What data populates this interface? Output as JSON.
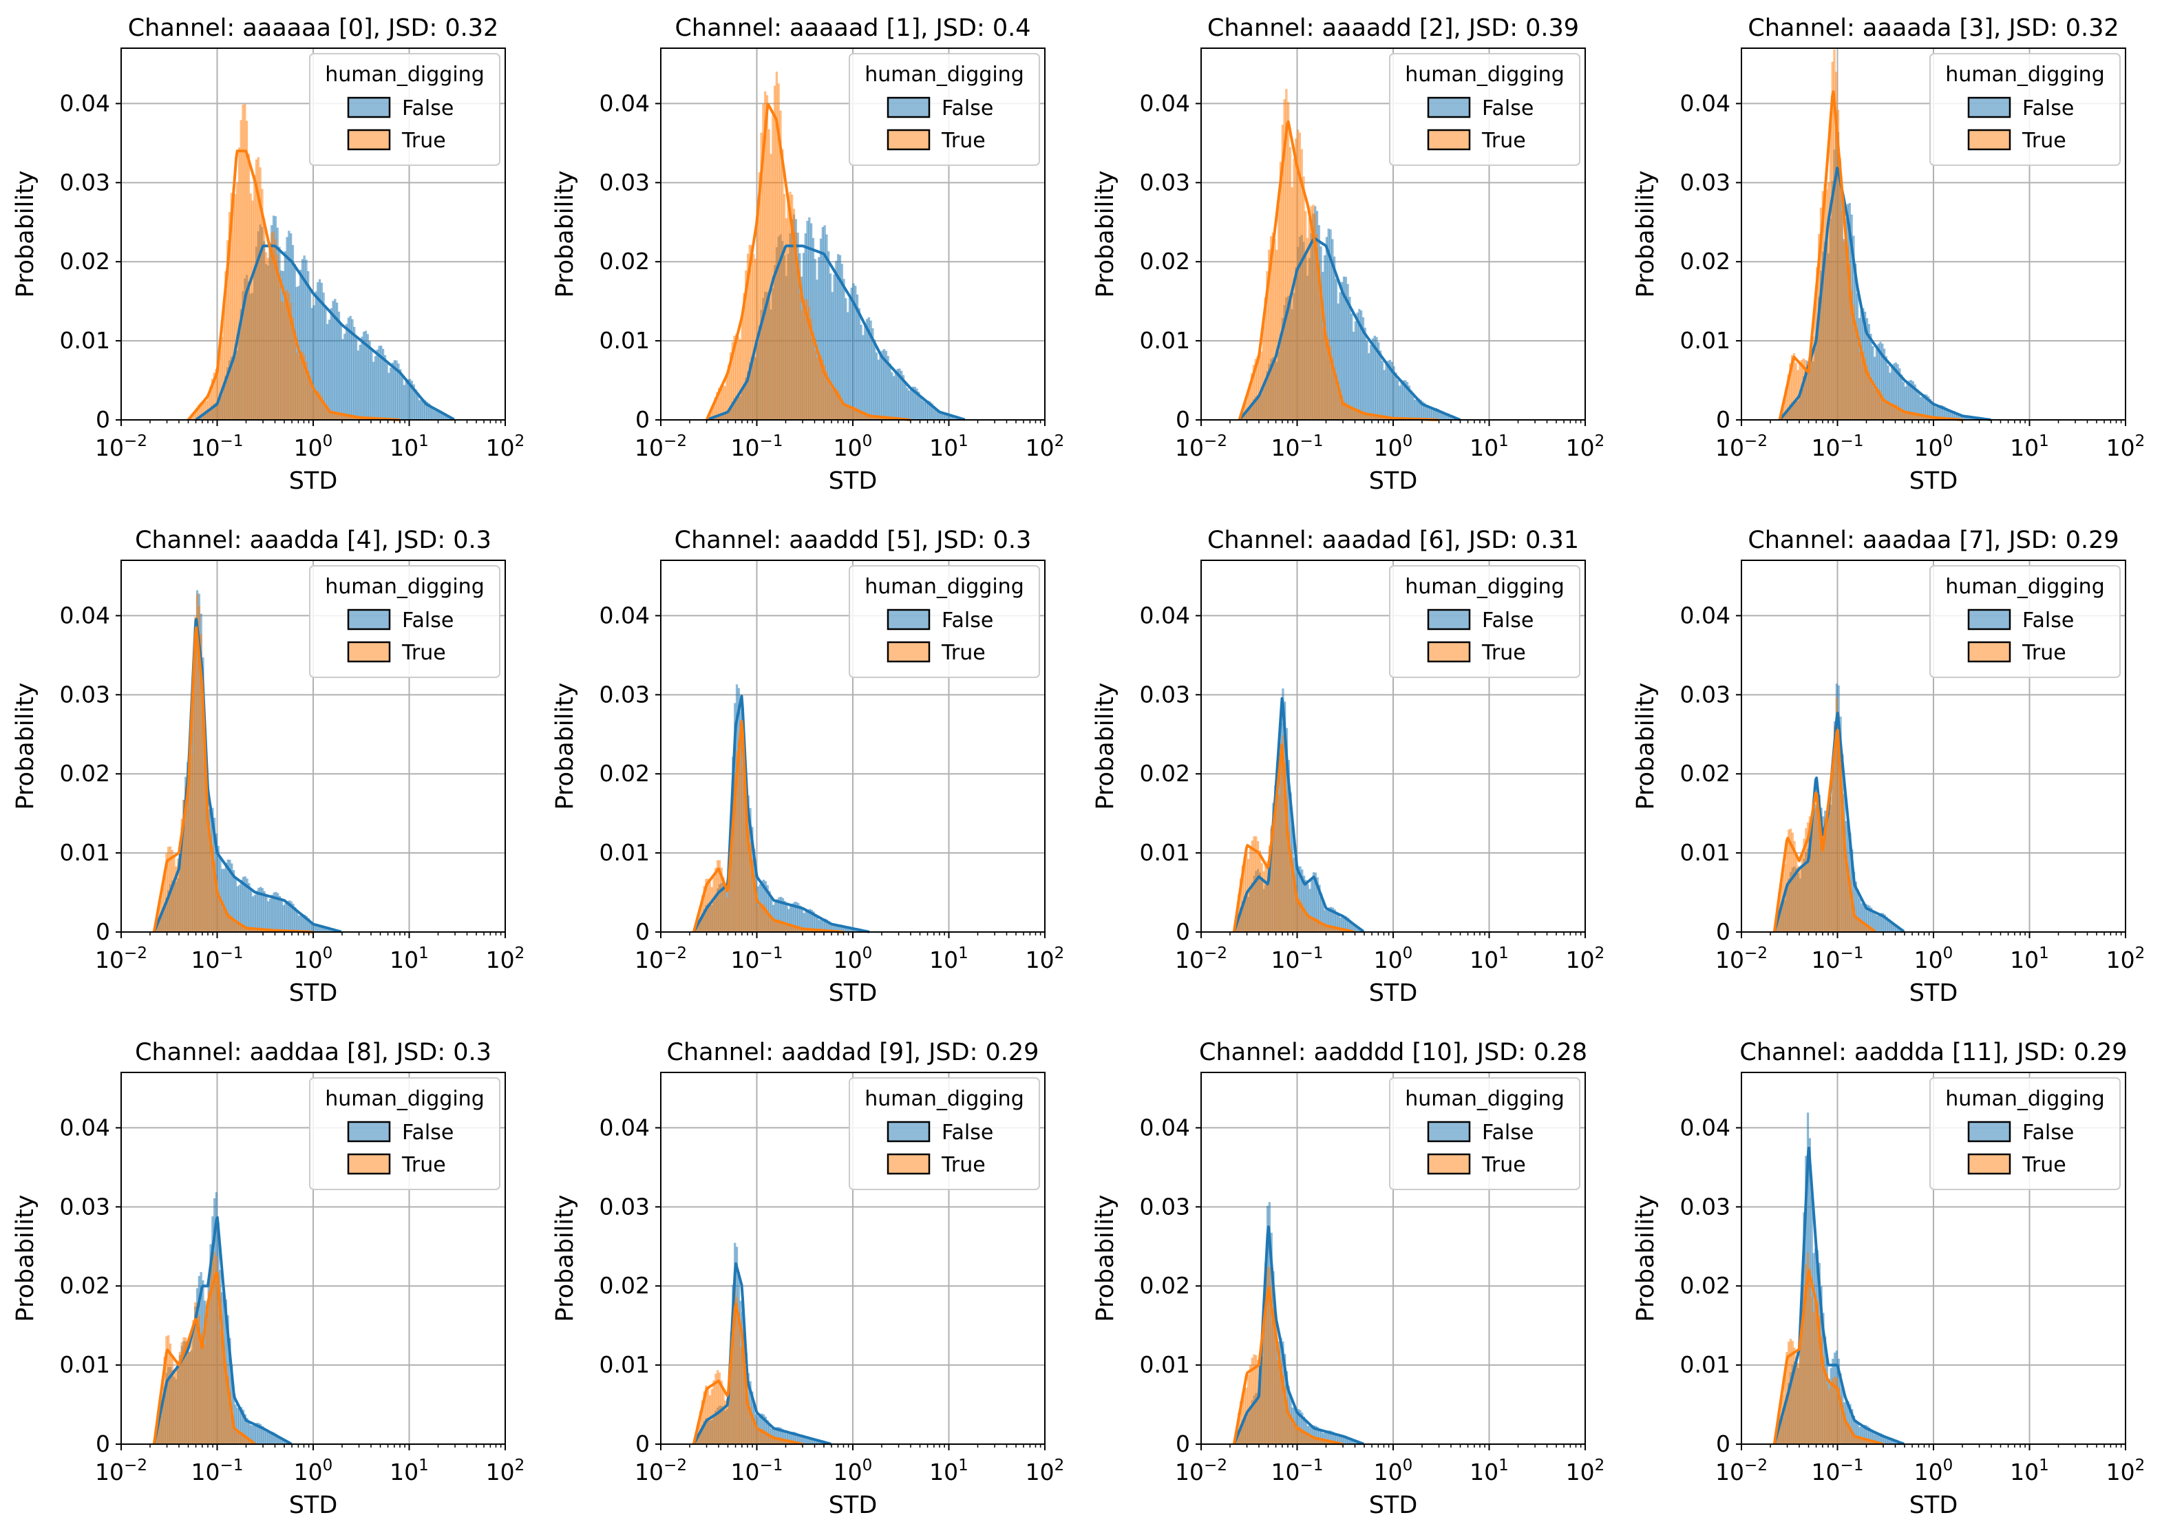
{
  "figure": {
    "legend_title": "human_digging",
    "legend_false": "False",
    "legend_true": "True",
    "colors": {
      "false_fill": "#1f77b4",
      "true_fill": "#ff7f0e",
      "false_line": "#1f77b4",
      "true_line": "#ff7f0e"
    }
  },
  "chart_data": [
    {
      "type": "area",
      "title": "Channel: aaaaaa [0], JSD: 0.32",
      "xlabel": "STD",
      "ylabel": "Probability",
      "xscale": "log",
      "xlim": [
        0.01,
        100
      ],
      "ylim": [
        0,
        0.047
      ],
      "yticks": [
        0,
        0.01,
        0.02,
        0.03,
        0.04
      ],
      "ytick_labels": [
        "0",
        "0.01",
        "0.02",
        "0.03",
        "0.04"
      ],
      "grid": true,
      "legend": "top-right",
      "series": [
        {
          "name": "False",
          "x": [
            0.06,
            0.1,
            0.15,
            0.2,
            0.3,
            0.4,
            0.6,
            1,
            2,
            4,
            8,
            15,
            30
          ],
          "values": [
            0,
            0.002,
            0.008,
            0.016,
            0.022,
            0.022,
            0.02,
            0.016,
            0.012,
            0.009,
            0.006,
            0.002,
            0
          ]
        },
        {
          "name": "True",
          "x": [
            0.05,
            0.08,
            0.1,
            0.13,
            0.16,
            0.2,
            0.25,
            0.35,
            0.5,
            0.7,
            1,
            1.5,
            3,
            8
          ],
          "values": [
            0,
            0.003,
            0.006,
            0.02,
            0.034,
            0.034,
            0.03,
            0.022,
            0.016,
            0.009,
            0.004,
            0.001,
            0.0003,
            0
          ]
        }
      ]
    },
    {
      "type": "area",
      "title": "Channel: aaaaad [1], JSD: 0.4",
      "xlabel": "STD",
      "ylabel": "Probability",
      "xscale": "log",
      "xlim": [
        0.01,
        100
      ],
      "ylim": [
        0,
        0.047
      ],
      "yticks": [
        0,
        0.01,
        0.02,
        0.03,
        0.04
      ],
      "ytick_labels": [
        "0",
        "0.01",
        "0.02",
        "0.03",
        "0.04"
      ],
      "grid": true,
      "legend": "top-right",
      "series": [
        {
          "name": "False",
          "x": [
            0.03,
            0.05,
            0.08,
            0.1,
            0.15,
            0.2,
            0.3,
            0.5,
            1,
            2,
            4,
            8,
            15
          ],
          "values": [
            0,
            0.001,
            0.005,
            0.01,
            0.018,
            0.022,
            0.022,
            0.021,
            0.015,
            0.008,
            0.004,
            0.001,
            0
          ]
        },
        {
          "name": "True",
          "x": [
            0.03,
            0.05,
            0.07,
            0.1,
            0.13,
            0.16,
            0.2,
            0.3,
            0.5,
            0.8,
            1.5,
            4
          ],
          "values": [
            0,
            0.006,
            0.013,
            0.025,
            0.04,
            0.038,
            0.03,
            0.015,
            0.006,
            0.002,
            0.0005,
            0
          ]
        }
      ]
    },
    {
      "type": "area",
      "title": "Channel: aaaadd [2], JSD: 0.39",
      "xlabel": "STD",
      "ylabel": "Probability",
      "xscale": "log",
      "xlim": [
        0.01,
        100
      ],
      "ylim": [
        0,
        0.047
      ],
      "yticks": [
        0,
        0.01,
        0.02,
        0.03,
        0.04
      ],
      "ytick_labels": [
        "0",
        "0.01",
        "0.02",
        "0.03",
        "0.04"
      ],
      "grid": true,
      "legend": "top-right",
      "series": [
        {
          "name": "False",
          "x": [
            0.025,
            0.04,
            0.06,
            0.08,
            0.1,
            0.15,
            0.2,
            0.3,
            0.5,
            1,
            2,
            5
          ],
          "values": [
            0,
            0.003,
            0.008,
            0.014,
            0.019,
            0.023,
            0.022,
            0.016,
            0.011,
            0.006,
            0.002,
            0
          ]
        },
        {
          "name": "True",
          "x": [
            0.025,
            0.04,
            0.06,
            0.08,
            0.1,
            0.13,
            0.16,
            0.2,
            0.3,
            0.5,
            1,
            3
          ],
          "values": [
            0,
            0.008,
            0.025,
            0.038,
            0.032,
            0.027,
            0.021,
            0.01,
            0.002,
            0.0008,
            0.0002,
            0
          ]
        }
      ]
    },
    {
      "type": "area",
      "title": "Channel: aaaada [3], JSD: 0.32",
      "xlabel": "STD",
      "ylabel": "Probability",
      "xscale": "log",
      "xlim": [
        0.01,
        100
      ],
      "ylim": [
        0,
        0.047
      ],
      "yticks": [
        0,
        0.01,
        0.02,
        0.03,
        0.04
      ],
      "ytick_labels": [
        "0",
        "0.01",
        "0.02",
        "0.03",
        "0.04"
      ],
      "grid": true,
      "legend": "top-right",
      "series": [
        {
          "name": "False",
          "x": [
            0.025,
            0.04,
            0.06,
            0.08,
            0.1,
            0.13,
            0.16,
            0.2,
            0.3,
            0.5,
            1,
            2,
            4
          ],
          "values": [
            0,
            0.003,
            0.01,
            0.025,
            0.032,
            0.025,
            0.017,
            0.011,
            0.008,
            0.005,
            0.002,
            0.0005,
            0
          ]
        },
        {
          "name": "True",
          "x": [
            0.025,
            0.035,
            0.05,
            0.07,
            0.09,
            0.11,
            0.14,
            0.2,
            0.3,
            0.5,
            1,
            2
          ],
          "values": [
            0,
            0.008,
            0.006,
            0.025,
            0.042,
            0.03,
            0.014,
            0.006,
            0.0025,
            0.001,
            0.0003,
            0
          ]
        }
      ]
    },
    {
      "type": "area",
      "title": "Channel: aaadda [4], JSD: 0.3",
      "xlabel": "STD",
      "ylabel": "Probability",
      "xscale": "log",
      "xlim": [
        0.01,
        100
      ],
      "ylim": [
        0,
        0.047
      ],
      "yticks": [
        0,
        0.01,
        0.02,
        0.03,
        0.04
      ],
      "ytick_labels": [
        "0",
        "0.01",
        "0.02",
        "0.03",
        "0.04"
      ],
      "grid": true,
      "legend": "top-right",
      "series": [
        {
          "name": "False",
          "x": [
            0.022,
            0.03,
            0.04,
            0.05,
            0.06,
            0.07,
            0.08,
            0.1,
            0.15,
            0.25,
            0.5,
            1,
            2
          ],
          "values": [
            0,
            0.004,
            0.008,
            0.02,
            0.04,
            0.033,
            0.018,
            0.01,
            0.007,
            0.005,
            0.004,
            0.001,
            0
          ]
        },
        {
          "name": "True",
          "x": [
            0.022,
            0.03,
            0.04,
            0.05,
            0.06,
            0.07,
            0.08,
            0.1,
            0.13,
            0.2,
            0.4,
            1
          ],
          "values": [
            0,
            0.009,
            0.01,
            0.018,
            0.039,
            0.031,
            0.014,
            0.005,
            0.002,
            0.0005,
            0.0002,
            0
          ]
        }
      ]
    },
    {
      "type": "area",
      "title": "Channel: aaaddd [5], JSD: 0.3",
      "xlabel": "STD",
      "ylabel": "Probability",
      "xscale": "log",
      "xlim": [
        0.01,
        100
      ],
      "ylim": [
        0,
        0.047
      ],
      "yticks": [
        0,
        0.01,
        0.02,
        0.03,
        0.04
      ],
      "ytick_labels": [
        "0",
        "0.01",
        "0.02",
        "0.03",
        "0.04"
      ],
      "grid": true,
      "legend": "top-right",
      "series": [
        {
          "name": "False",
          "x": [
            0.022,
            0.03,
            0.04,
            0.05,
            0.06,
            0.07,
            0.08,
            0.1,
            0.15,
            0.3,
            0.6,
            1.5
          ],
          "values": [
            0,
            0.003,
            0.005,
            0.006,
            0.026,
            0.03,
            0.016,
            0.007,
            0.004,
            0.003,
            0.001,
            0
          ]
        },
        {
          "name": "True",
          "x": [
            0.022,
            0.03,
            0.04,
            0.05,
            0.06,
            0.07,
            0.08,
            0.1,
            0.15,
            0.3,
            0.8
          ],
          "values": [
            0,
            0.006,
            0.008,
            0.005,
            0.018,
            0.027,
            0.012,
            0.004,
            0.0015,
            0.0004,
            0
          ]
        }
      ]
    },
    {
      "type": "area",
      "title": "Channel: aaadad [6], JSD: 0.31",
      "xlabel": "STD",
      "ylabel": "Probability",
      "xscale": "log",
      "xlim": [
        0.01,
        100
      ],
      "ylim": [
        0,
        0.047
      ],
      "yticks": [
        0,
        0.01,
        0.02,
        0.03,
        0.04
      ],
      "ytick_labels": [
        "0",
        "0.01",
        "0.02",
        "0.03",
        "0.04"
      ],
      "grid": true,
      "legend": "top-right",
      "series": [
        {
          "name": "False",
          "x": [
            0.022,
            0.03,
            0.04,
            0.05,
            0.06,
            0.07,
            0.08,
            0.1,
            0.12,
            0.15,
            0.2,
            0.3,
            0.5
          ],
          "values": [
            0,
            0.005,
            0.007,
            0.006,
            0.018,
            0.03,
            0.02,
            0.008,
            0.006,
            0.007,
            0.003,
            0.002,
            0
          ]
        },
        {
          "name": "True",
          "x": [
            0.022,
            0.03,
            0.04,
            0.05,
            0.06,
            0.07,
            0.08,
            0.1,
            0.13,
            0.2,
            0.4
          ],
          "values": [
            0,
            0.011,
            0.01,
            0.008,
            0.016,
            0.024,
            0.012,
            0.004,
            0.002,
            0.0008,
            0
          ]
        }
      ]
    },
    {
      "type": "area",
      "title": "Channel: aaadaa [7], JSD: 0.29",
      "xlabel": "STD",
      "ylabel": "Probability",
      "xscale": "log",
      "xlim": [
        0.01,
        100
      ],
      "ylim": [
        0,
        0.047
      ],
      "yticks": [
        0,
        0.01,
        0.02,
        0.03,
        0.04
      ],
      "ytick_labels": [
        "0",
        "0.01",
        "0.02",
        "0.03",
        "0.04"
      ],
      "grid": true,
      "legend": "top-right",
      "series": [
        {
          "name": "False",
          "x": [
            0.022,
            0.03,
            0.04,
            0.05,
            0.06,
            0.07,
            0.08,
            0.1,
            0.12,
            0.15,
            0.2,
            0.3,
            0.5
          ],
          "values": [
            0,
            0.006,
            0.008,
            0.009,
            0.02,
            0.012,
            0.015,
            0.028,
            0.018,
            0.006,
            0.003,
            0.002,
            0
          ]
        },
        {
          "name": "True",
          "x": [
            0.022,
            0.03,
            0.04,
            0.05,
            0.06,
            0.07,
            0.08,
            0.1,
            0.12,
            0.15,
            0.25
          ],
          "values": [
            0,
            0.012,
            0.009,
            0.012,
            0.018,
            0.01,
            0.016,
            0.026,
            0.01,
            0.002,
            0
          ]
        }
      ]
    },
    {
      "type": "area",
      "title": "Channel: aaddaa [8], JSD: 0.3",
      "xlabel": "STD",
      "ylabel": "Probability",
      "xscale": "log",
      "xlim": [
        0.01,
        100
      ],
      "ylim": [
        0,
        0.047
      ],
      "yticks": [
        0,
        0.01,
        0.02,
        0.03,
        0.04
      ],
      "ytick_labels": [
        "0",
        "0.01",
        "0.02",
        "0.03",
        "0.04"
      ],
      "grid": true,
      "legend": "top-right",
      "series": [
        {
          "name": "False",
          "x": [
            0.022,
            0.03,
            0.04,
            0.05,
            0.06,
            0.07,
            0.08,
            0.1,
            0.12,
            0.15,
            0.2,
            0.3,
            0.6
          ],
          "values": [
            0,
            0.008,
            0.01,
            0.012,
            0.016,
            0.02,
            0.02,
            0.029,
            0.018,
            0.006,
            0.003,
            0.002,
            0
          ]
        },
        {
          "name": "True",
          "x": [
            0.022,
            0.03,
            0.04,
            0.05,
            0.06,
            0.07,
            0.08,
            0.1,
            0.12,
            0.15,
            0.25
          ],
          "values": [
            0,
            0.012,
            0.01,
            0.013,
            0.016,
            0.012,
            0.018,
            0.022,
            0.01,
            0.002,
            0
          ]
        }
      ]
    },
    {
      "type": "area",
      "title": "Channel: aaddad [9], JSD: 0.29",
      "xlabel": "STD",
      "ylabel": "Probability",
      "xscale": "log",
      "xlim": [
        0.01,
        100
      ],
      "ylim": [
        0,
        0.047
      ],
      "yticks": [
        0,
        0.01,
        0.02,
        0.03,
        0.04
      ],
      "ytick_labels": [
        "0",
        "0.01",
        "0.02",
        "0.03",
        "0.04"
      ],
      "grid": true,
      "legend": "top-right",
      "series": [
        {
          "name": "False",
          "x": [
            0.022,
            0.03,
            0.04,
            0.05,
            0.06,
            0.07,
            0.08,
            0.1,
            0.15,
            0.3,
            0.6
          ],
          "values": [
            0,
            0.003,
            0.004,
            0.005,
            0.023,
            0.02,
            0.008,
            0.004,
            0.002,
            0.001,
            0
          ]
        },
        {
          "name": "True",
          "x": [
            0.022,
            0.03,
            0.04,
            0.05,
            0.06,
            0.07,
            0.08,
            0.1,
            0.15,
            0.3
          ],
          "values": [
            0,
            0.007,
            0.008,
            0.006,
            0.018,
            0.014,
            0.005,
            0.002,
            0.0008,
            0
          ]
        }
      ]
    },
    {
      "type": "area",
      "title": "Channel: aadddd [10], JSD: 0.28",
      "xlabel": "STD",
      "ylabel": "Probability",
      "xscale": "log",
      "xlim": [
        0.01,
        100
      ],
      "ylim": [
        0,
        0.047
      ],
      "yticks": [
        0,
        0.01,
        0.02,
        0.03,
        0.04
      ],
      "ytick_labels": [
        "0",
        "0.01",
        "0.02",
        "0.03",
        "0.04"
      ],
      "grid": true,
      "legend": "top-right",
      "series": [
        {
          "name": "False",
          "x": [
            0.022,
            0.03,
            0.04,
            0.05,
            0.06,
            0.07,
            0.08,
            0.1,
            0.15,
            0.3,
            0.5
          ],
          "values": [
            0,
            0.004,
            0.006,
            0.028,
            0.016,
            0.012,
            0.007,
            0.004,
            0.002,
            0.001,
            0
          ]
        },
        {
          "name": "True",
          "x": [
            0.022,
            0.03,
            0.04,
            0.05,
            0.06,
            0.07,
            0.08,
            0.1,
            0.15,
            0.3
          ],
          "values": [
            0,
            0.009,
            0.01,
            0.02,
            0.014,
            0.008,
            0.004,
            0.002,
            0.0008,
            0
          ]
        }
      ]
    },
    {
      "type": "area",
      "title": "Channel: aaddda [11], JSD: 0.29",
      "xlabel": "STD",
      "ylabel": "Probability",
      "xscale": "log",
      "xlim": [
        0.01,
        100
      ],
      "ylim": [
        0,
        0.047
      ],
      "yticks": [
        0,
        0.01,
        0.02,
        0.03,
        0.04
      ],
      "ytick_labels": [
        "0",
        "0.01",
        "0.02",
        "0.03",
        "0.04"
      ],
      "grid": true,
      "legend": "top-right",
      "series": [
        {
          "name": "False",
          "x": [
            0.022,
            0.03,
            0.04,
            0.05,
            0.06,
            0.07,
            0.08,
            0.1,
            0.12,
            0.15,
            0.2,
            0.3,
            0.5
          ],
          "values": [
            0,
            0.006,
            0.012,
            0.038,
            0.025,
            0.015,
            0.01,
            0.01,
            0.006,
            0.003,
            0.002,
            0.001,
            0
          ]
        },
        {
          "name": "True",
          "x": [
            0.022,
            0.03,
            0.04,
            0.05,
            0.06,
            0.07,
            0.08,
            0.1,
            0.12,
            0.15,
            0.3
          ],
          "values": [
            0,
            0.011,
            0.012,
            0.022,
            0.018,
            0.01,
            0.008,
            0.007,
            0.003,
            0.001,
            0
          ]
        }
      ]
    }
  ]
}
